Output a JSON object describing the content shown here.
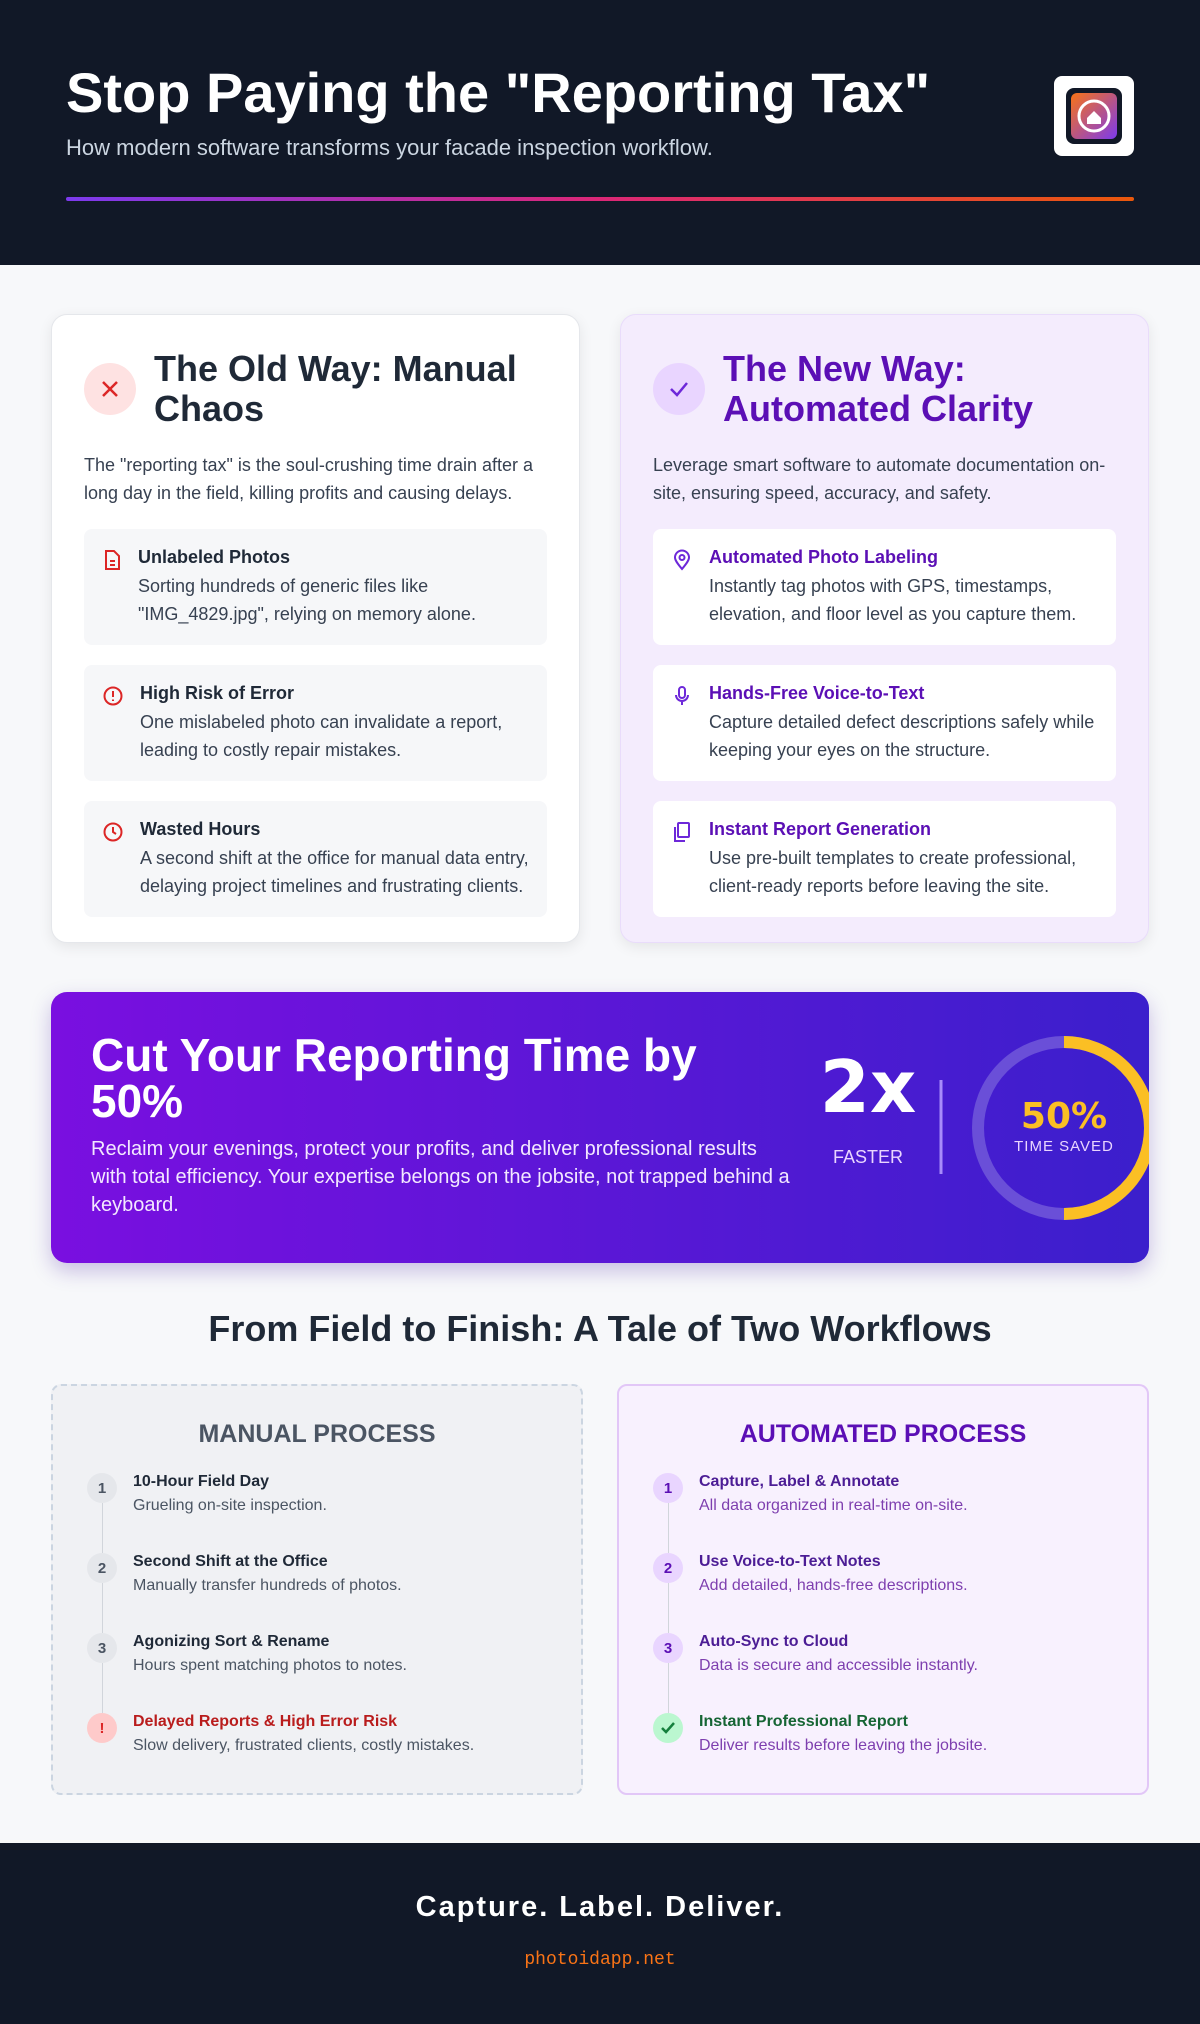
{
  "header": {
    "title": "Stop Paying the \"Reporting Tax\"",
    "subtitle": "How modern software transforms your facade inspection workflow."
  },
  "old_way": {
    "title": "The Old Way: Manual Chaos",
    "intro": "The \"reporting tax\" is the soul-crushing time drain after a long day in the field, killing profits and causing delays.",
    "items": [
      {
        "title": "Unlabeled Photos",
        "text": "Sorting hundreds of generic files like \"IMG_4829.jpg\", relying on memory alone."
      },
      {
        "title": "High Risk of Error",
        "text": "One mislabeled photo can invalidate a report, leading to costly repair mistakes."
      },
      {
        "title": "Wasted Hours",
        "text": "A second shift at the office for manual data entry, delaying project timelines and frustrating clients."
      }
    ]
  },
  "new_way": {
    "title": "The New Way: Automated Clarity",
    "intro": "Leverage smart software to automate documentation on-site, ensuring speed, accuracy, and safety.",
    "items": [
      {
        "title": "Automated Photo Labeling",
        "text": "Instantly tag photos with GPS, timestamps, elevation, and floor level as you capture them."
      },
      {
        "title": "Hands-Free Voice-to-Text",
        "text": "Capture detailed defect descriptions safely while keeping your eyes on the structure."
      },
      {
        "title": "Instant Report Generation",
        "text": "Use pre-built templates to create professional, client-ready reports before leaving the site."
      }
    ]
  },
  "banner": {
    "title": "Cut Your Reporting Time by 50%",
    "text": "Reclaim your evenings, protect your profits, and deliver professional results with total efficiency. Your expertise belongs on the jobsite, not trapped behind a keyboard.",
    "speed_value": "2x",
    "speed_label": "FASTER",
    "saved_value": "50%",
    "saved_label": "TIME SAVED"
  },
  "workflows": {
    "title": "From Field to Finish: A Tale of Two Workflows",
    "manual": {
      "title": "MANUAL PROCESS",
      "steps": [
        {
          "num": "1",
          "title": "10-Hour Field Day",
          "text": "Grueling on-site inspection."
        },
        {
          "num": "2",
          "title": "Second Shift at the Office",
          "text": "Manually transfer hundreds of photos."
        },
        {
          "num": "3",
          "title": "Agonizing Sort & Rename",
          "text": "Hours spent matching photos to notes."
        },
        {
          "num": "!",
          "title": "Delayed Reports & High Error Risk",
          "text": "Slow delivery, frustrated clients, costly mistakes."
        }
      ]
    },
    "automated": {
      "title": "AUTOMATED PROCESS",
      "steps": [
        {
          "num": "1",
          "title": "Capture, Label & Annotate",
          "text": "All data organized in real-time on-site."
        },
        {
          "num": "2",
          "title": "Use Voice-to-Text Notes",
          "text": "Add detailed, hands-free descriptions."
        },
        {
          "num": "3",
          "title": "Auto-Sync to Cloud",
          "text": "Data is secure and accessible instantly."
        },
        {
          "title": "Instant Professional Report",
          "text": "Deliver results before leaving the jobsite."
        }
      ]
    }
  },
  "footer": {
    "tagline": "Capture. Label. Deliver.",
    "url": "photoidapp.net"
  }
}
